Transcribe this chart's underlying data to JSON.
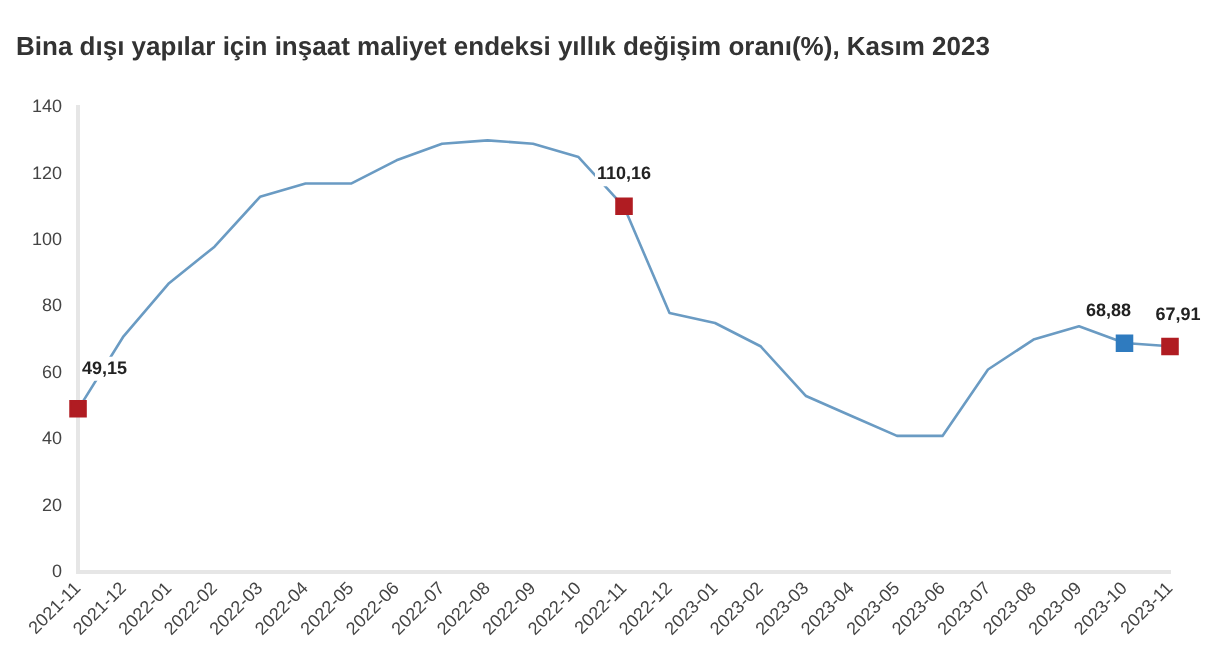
{
  "chart_data": {
    "type": "line",
    "title": "Bina dışı yapılar için inşaat maliyet endeksi yıllık değişim oranı(%), Kasım 2023",
    "categories": [
      "2021-11",
      "2021-12",
      "2022-01",
      "2022-02",
      "2022-03",
      "2022-04",
      "2022-05",
      "2022-06",
      "2022-07",
      "2022-08",
      "2022-09",
      "2022-10",
      "2022-11",
      "2022-12",
      "2023-01",
      "2023-02",
      "2023-03",
      "2023-04",
      "2023-05",
      "2023-06",
      "2023-07",
      "2023-08",
      "2023-09",
      "2023-10",
      "2023-11"
    ],
    "series": [
      {
        "color": "#6a9bc3",
        "marker": "none",
        "line_style": "solid",
        "values": [
          49,
          71,
          87,
          98,
          113,
          117,
          117,
          124,
          129,
          130,
          129,
          125,
          110,
          78,
          75,
          68,
          53,
          47,
          41,
          41,
          61,
          70,
          74,
          69,
          68
        ]
      },
      {
        "type": "scatter",
        "marker": "square",
        "values": [
          49.15,
          null,
          null,
          null,
          null,
          null,
          null,
          null,
          null,
          null,
          null,
          null,
          110.16,
          null,
          null,
          null,
          null,
          null,
          null,
          null,
          null,
          null,
          null,
          68.88,
          67.91
        ],
        "colors": [
          "#b01c22",
          null,
          null,
          null,
          null,
          null,
          null,
          null,
          null,
          null,
          null,
          null,
          "#b01c22",
          null,
          null,
          null,
          null,
          null,
          null,
          null,
          null,
          null,
          null,
          "#2f7bbf",
          "#b01c22"
        ],
        "value_labels": [
          "49,15",
          null,
          null,
          null,
          null,
          null,
          null,
          null,
          null,
          null,
          null,
          null,
          "110,16",
          null,
          null,
          null,
          null,
          null,
          null,
          null,
          null,
          null,
          null,
          "68,88",
          "67,91"
        ]
      }
    ],
    "ylim": [
      0,
      140
    ],
    "yticks": [
      0,
      20,
      40,
      60,
      80,
      100,
      120,
      140
    ],
    "grid": false,
    "legend": false
  }
}
